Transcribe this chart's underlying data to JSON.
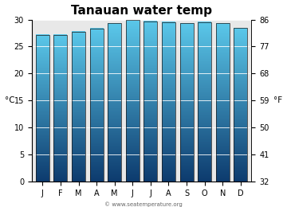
{
  "title": "Tanauan water temp",
  "months": [
    "J",
    "F",
    "M",
    "A",
    "M",
    "J",
    "J",
    "A",
    "S",
    "O",
    "N",
    "D"
  ],
  "values": [
    27.2,
    27.2,
    27.7,
    28.3,
    29.3,
    30.0,
    29.7,
    29.5,
    29.3,
    29.5,
    29.3,
    28.4
  ],
  "ylim_c": [
    0,
    30
  ],
  "yticks_c": [
    0,
    5,
    10,
    15,
    20,
    25,
    30
  ],
  "yticks_f": [
    32,
    41,
    50,
    59,
    68,
    77,
    86
  ],
  "ylabel_left": "°C",
  "ylabel_right": "°F",
  "bar_color_top": "#5BC8EA",
  "bar_color_bottom": "#0D3B6E",
  "bar_edge_color": "#1a1a1a",
  "background_color": "#ffffff",
  "plot_bg_color": "#e8e8e8",
  "title_fontsize": 11,
  "axis_fontsize": 7.5,
  "tick_fontsize": 7,
  "watermark": "© www.seatemperature.org"
}
